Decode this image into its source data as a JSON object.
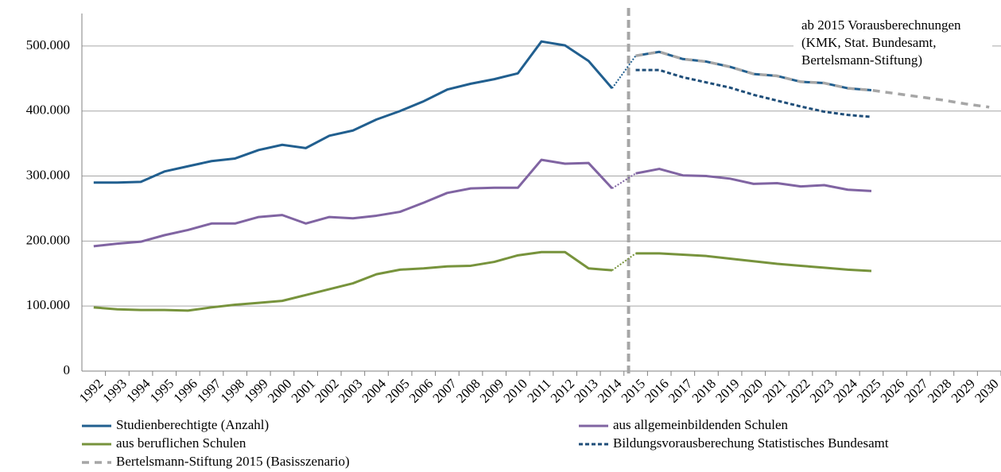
{
  "chart_data": {
    "type": "line",
    "x": [
      1992,
      1993,
      1994,
      1995,
      1996,
      1997,
      1998,
      1999,
      2000,
      2001,
      2002,
      2003,
      2004,
      2005,
      2006,
      2007,
      2008,
      2009,
      2010,
      2011,
      2012,
      2013,
      2014,
      2015,
      2016,
      2017,
      2018,
      2019,
      2020,
      2021,
      2022,
      2023,
      2024,
      2025,
      2026,
      2027,
      2028,
      2029,
      2030
    ],
    "xlim": [
      1991.5,
      2030.5
    ],
    "ylim": [
      0,
      550000
    ],
    "yticks": [
      0,
      {
        "value": 100000,
        "label": "100.000"
      },
      {
        "value": 200000,
        "label": "200.000"
      },
      {
        "value": 300000,
        "label": "300.000"
      },
      {
        "value": 400000,
        "label": "400.000"
      },
      {
        "value": 500000,
        "label": "500.000"
      }
    ],
    "grid": true,
    "projection_from": 2015,
    "annotation": [
      "ab 2015 Vorausberechnungen",
      "(KMK, Stat. Bundesamt,",
      "Bertelsmann-Stiftung)"
    ],
    "series": [
      {
        "name": "Studienberechtigte (Anzahl)",
        "color": "#215f8f",
        "dash": "solid",
        "values": [
          290000,
          290000,
          291000,
          307000,
          315000,
          323000,
          327000,
          340000,
          348000,
          343000,
          362000,
          370000,
          387000,
          400000,
          415000,
          433000,
          442000,
          449000,
          458000,
          507000,
          501000,
          477000,
          435000,
          485000,
          491000,
          480000,
          476000,
          468000,
          457000,
          454000,
          445000,
          443000,
          435000,
          432000,
          null,
          null,
          null,
          null,
          null
        ]
      },
      {
        "name": "aus allgemeinbildenden Schulen",
        "color": "#8064a2",
        "dash": "solid",
        "values": [
          192000,
          196000,
          199000,
          209000,
          217000,
          227000,
          227000,
          237000,
          240000,
          227000,
          237000,
          235000,
          239000,
          245000,
          259000,
          274000,
          281000,
          282000,
          282000,
          325000,
          319000,
          320000,
          281000,
          304000,
          311000,
          301000,
          300000,
          296000,
          288000,
          289000,
          284000,
          286000,
          279000,
          277000,
          null,
          null,
          null,
          null,
          null
        ]
      },
      {
        "name": "aus beruflichen Schulen",
        "color": "#77933c",
        "dash": "solid",
        "values": [
          98000,
          95000,
          94000,
          94000,
          93000,
          98000,
          102000,
          105000,
          108000,
          117000,
          126000,
          135000,
          149000,
          156000,
          158000,
          161000,
          162000,
          168000,
          178000,
          183000,
          183000,
          158000,
          155000,
          181000,
          181000,
          179000,
          177000,
          173000,
          169000,
          165000,
          162000,
          159000,
          156000,
          154000,
          null,
          null,
          null,
          null,
          null
        ]
      },
      {
        "name": "Bildungsvorausberechung Statistisches Bundesamt",
        "color": "#1f4e79",
        "dash": "dashed",
        "values": [
          null,
          null,
          null,
          null,
          null,
          null,
          null,
          null,
          null,
          null,
          null,
          null,
          null,
          null,
          null,
          null,
          null,
          null,
          null,
          null,
          null,
          null,
          null,
          463000,
          463000,
          452000,
          444000,
          436000,
          425000,
          416000,
          407000,
          399000,
          394000,
          391000,
          null,
          null,
          null,
          null,
          null
        ]
      },
      {
        "name": "Bertelsmann-Stiftung 2015 (Basisszenario)",
        "color": "#a6a6a6",
        "dash": "long-dashed",
        "values": [
          null,
          null,
          null,
          null,
          null,
          null,
          null,
          null,
          null,
          null,
          null,
          null,
          null,
          null,
          null,
          null,
          null,
          null,
          null,
          null,
          null,
          null,
          null,
          485000,
          491000,
          480000,
          476000,
          468000,
          457000,
          454000,
          445000,
          443000,
          435000,
          432000,
          427000,
          422000,
          417000,
          411000,
          406000
        ]
      }
    ]
  }
}
